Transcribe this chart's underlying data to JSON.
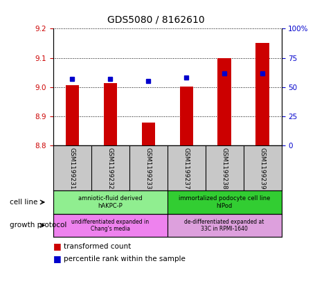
{
  "title": "GDS5080 / 8162610",
  "samples": [
    "GSM1199231",
    "GSM1199232",
    "GSM1199233",
    "GSM1199237",
    "GSM1199238",
    "GSM1199239"
  ],
  "transformed_counts": [
    9.007,
    9.013,
    8.878,
    9.002,
    9.099,
    9.152
  ],
  "percentile_ranks": [
    57,
    57,
    55,
    58,
    62,
    62
  ],
  "ylim_left": [
    8.8,
    9.2
  ],
  "ylim_right": [
    0,
    100
  ],
  "yticks_left": [
    8.8,
    8.9,
    9.0,
    9.1,
    9.2
  ],
  "yticks_right": [
    0,
    25,
    50,
    75,
    100
  ],
  "ytick_labels_right": [
    "0",
    "25",
    "50",
    "75",
    "100%"
  ],
  "bar_color": "#cc0000",
  "dot_color": "#0000cc",
  "bar_bottom": 8.8,
  "bar_width": 0.35,
  "cell_line_groups": [
    {
      "label": "amniotic-fluid derived\nhAKPC-P",
      "samples": [
        0,
        1,
        2
      ],
      "color": "#90ee90"
    },
    {
      "label": "immortalized podocyte cell line\nhIPod",
      "samples": [
        3,
        4,
        5
      ],
      "color": "#32cd32"
    }
  ],
  "growth_protocol_groups": [
    {
      "label": "undifferentiated expanded in\nChang's media",
      "samples": [
        0,
        1,
        2
      ],
      "color": "#ee82ee"
    },
    {
      "label": "de-differentiated expanded at\n33C in RPMI-1640",
      "samples": [
        3,
        4,
        5
      ],
      "color": "#dda0dd"
    }
  ],
  "legend_red_label": "transformed count",
  "legend_blue_label": "percentile rank within the sample",
  "bar_color_legend": "#cc0000",
  "dot_color_legend": "#0000cc",
  "left_label_color": "#cc0000",
  "right_label_color": "#0000cc",
  "tick_area_color": "#c8c8c8",
  "cell_line_left_label": "cell line",
  "growth_protocol_left_label": "growth protocol"
}
